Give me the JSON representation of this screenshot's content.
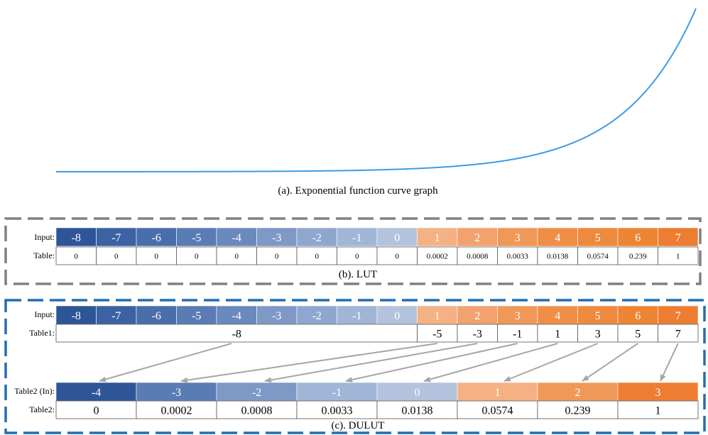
{
  "curve": {
    "caption": "(a). Exponential function curve graph",
    "color": "#3c9ce6"
  },
  "lut": {
    "caption": "(b). LUT",
    "input_label": "Input:",
    "table_label": "Table:",
    "inputs": [
      "-8",
      "-7",
      "-6",
      "-5",
      "-4",
      "-3",
      "-2",
      "-1",
      "0",
      "1",
      "2",
      "3",
      "4",
      "5",
      "6",
      "7"
    ],
    "table": [
      "0",
      "0",
      "0",
      "0",
      "0",
      "0",
      "0",
      "0",
      "0",
      "0.0002",
      "0.0008",
      "0.0033",
      "0.0138",
      "0.0574",
      "0.239",
      "1"
    ],
    "border_color": "#808080"
  },
  "dulut": {
    "caption": "(c). DULUT",
    "input_label": "Input:",
    "table1_label": "Table1:",
    "table2_in_label": "Table2 (In):",
    "table2_label": "Table2:",
    "inputs": [
      "-8",
      "-7",
      "-6",
      "-5",
      "-4",
      "-3",
      "-2",
      "-1",
      "0",
      "1",
      "2",
      "3",
      "4",
      "5",
      "6",
      "7"
    ],
    "table1": [
      "-8",
      "-5",
      "-3",
      "-1",
      "1",
      "3",
      "5",
      "7"
    ],
    "table2_in": [
      "-4",
      "-3",
      "-2",
      "-1",
      "0",
      "1",
      "2",
      "3"
    ],
    "table2": [
      "0",
      "0.0002",
      "0.0008",
      "0.0033",
      "0.0138",
      "0.0574",
      "0.239",
      "1"
    ],
    "border_color": "#1f6fb4",
    "arrow_color": "#a6a6a6"
  },
  "colors": {
    "negative_palette": [
      "#2d5597",
      "#3b62a3",
      "#4a6eab",
      "#5a7cb4",
      "#6a89bc",
      "#7e99c6",
      "#8ea7ce",
      "#a1b5d6",
      "#b3c3de"
    ],
    "positive_palette": [
      "#f4b183",
      "#f2a26e",
      "#f09858",
      "#ef8f47",
      "#ee8a3d",
      "#ed8533",
      "#ed7d31"
    ]
  }
}
